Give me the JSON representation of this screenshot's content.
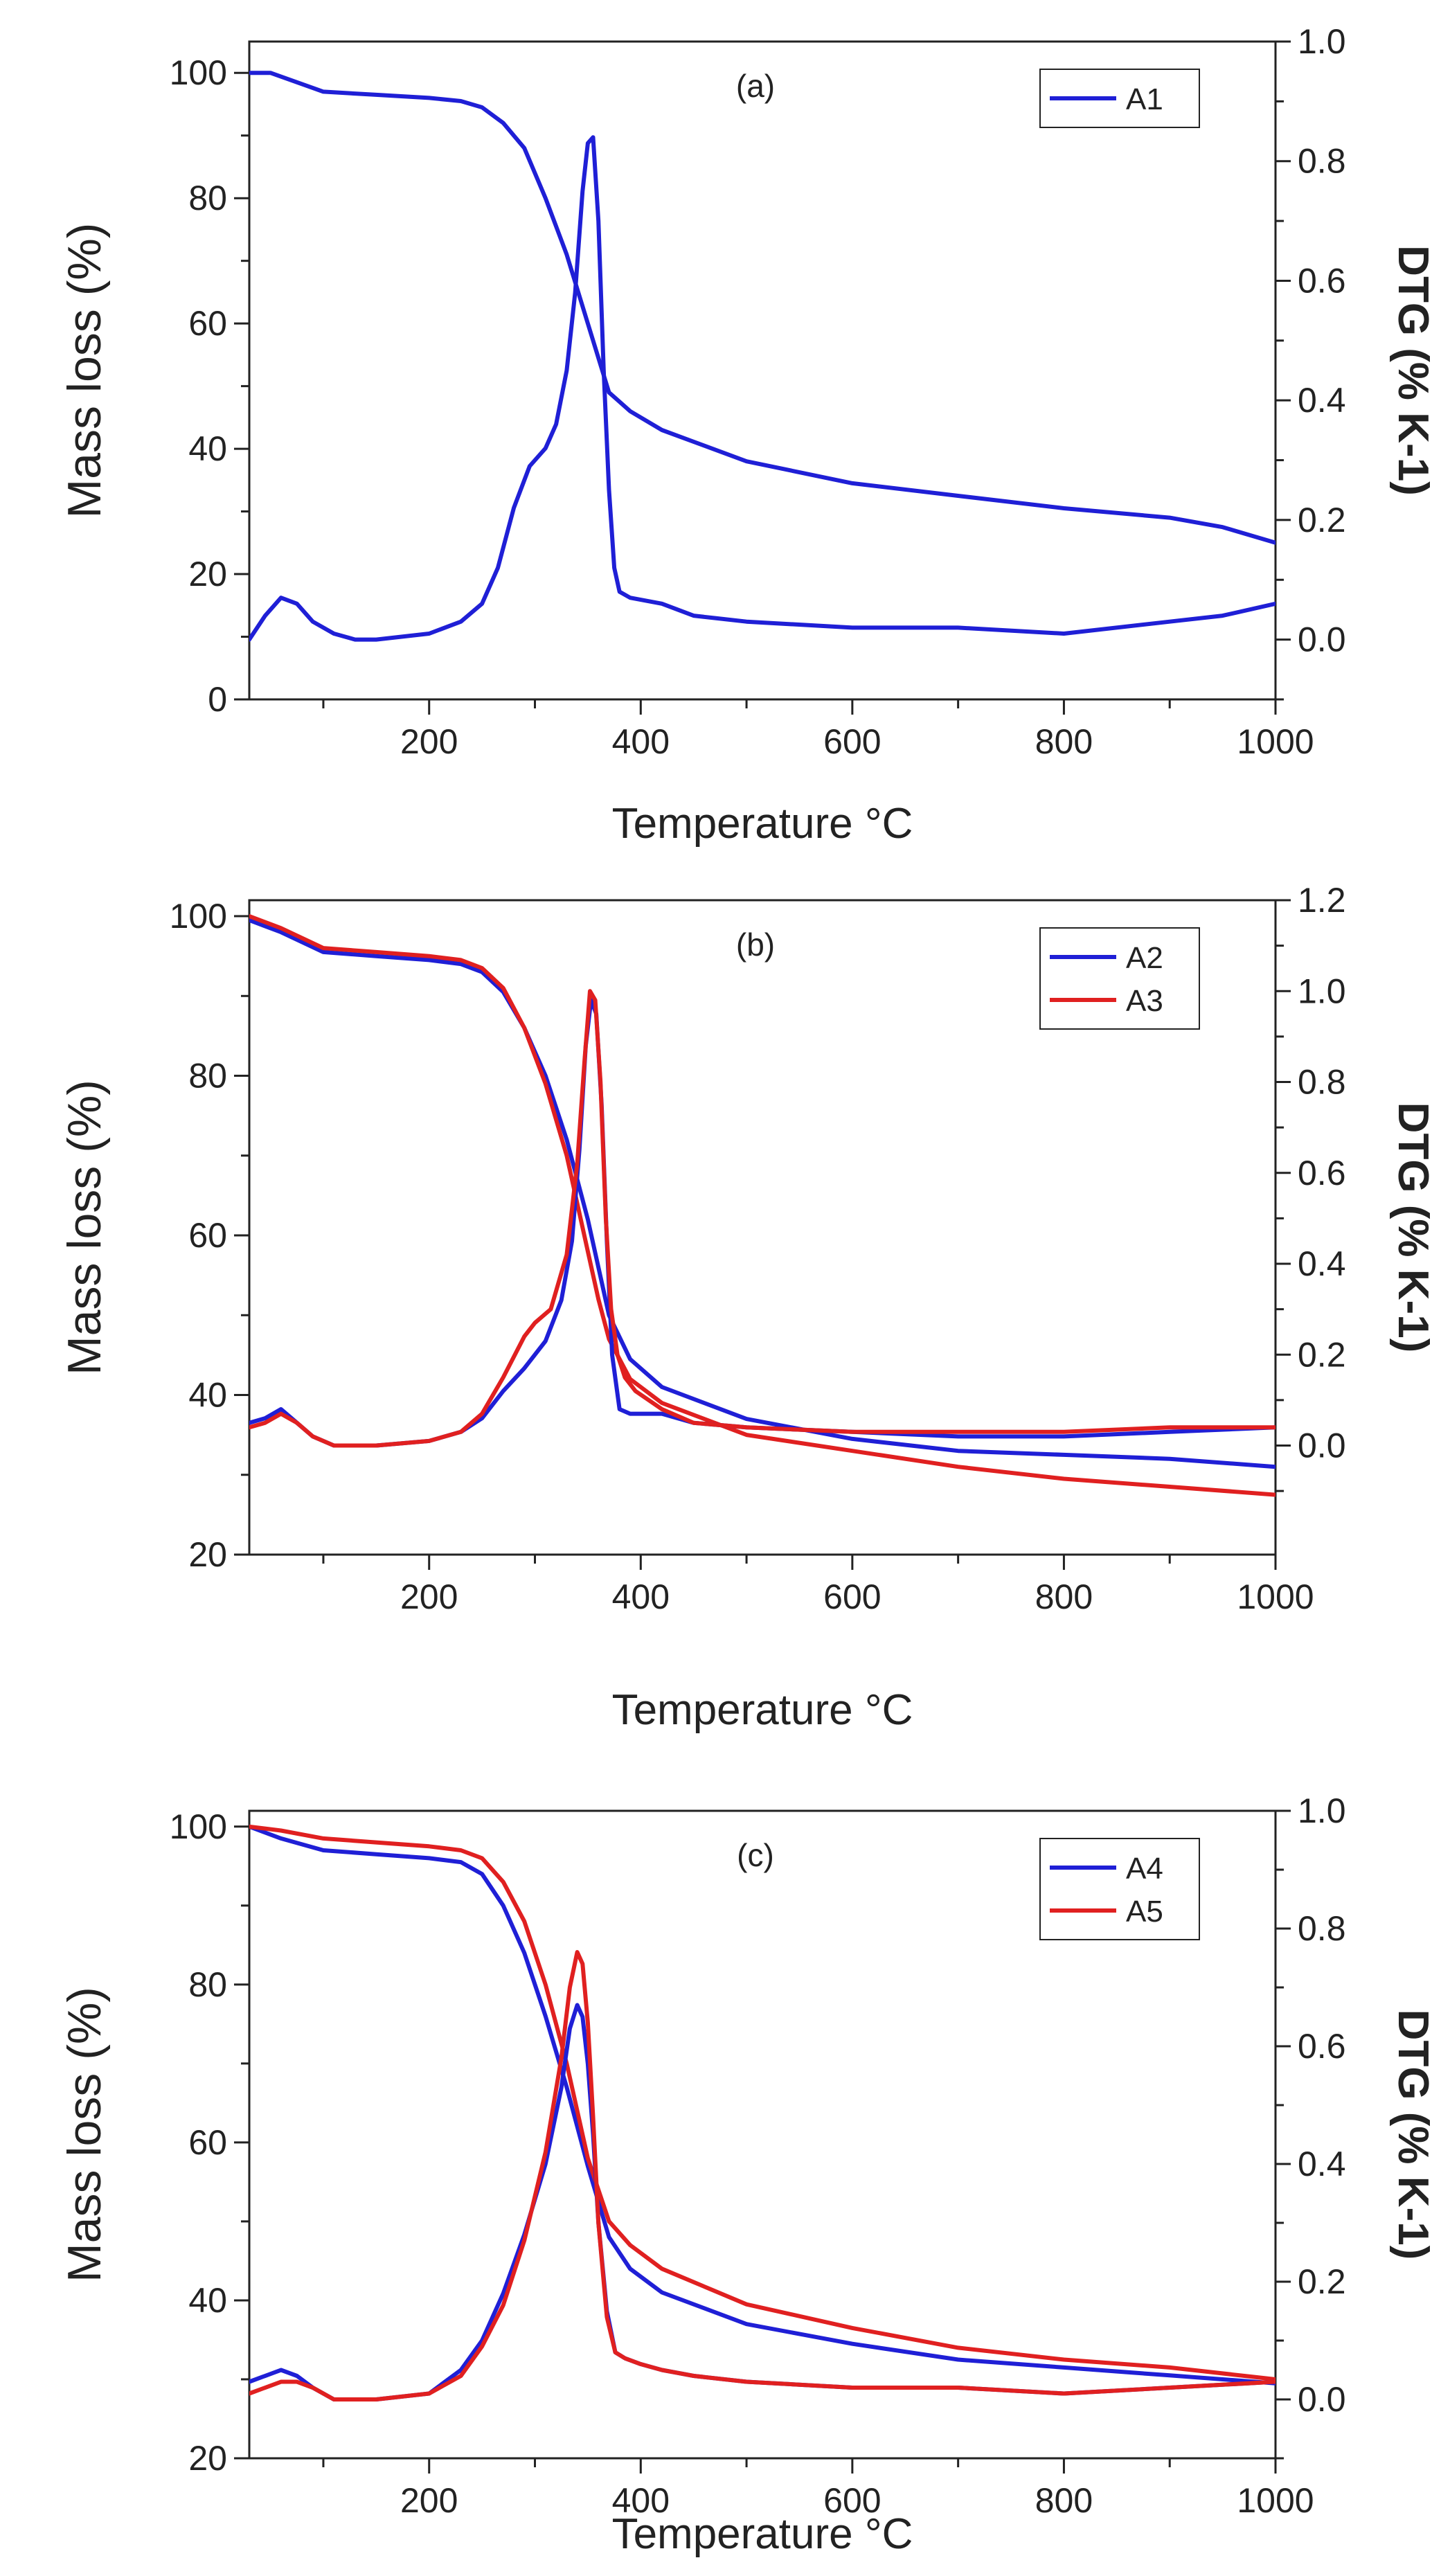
{
  "chart_data": [
    {
      "type": "line",
      "panel_label": "(a)",
      "xlabel": "Temperature °C",
      "ylabel": "Mass loss (%)",
      "y2label": "DTG (% K-1)",
      "xlim": [
        30,
        1000
      ],
      "ylim": [
        0,
        105
      ],
      "y2lim": [
        -0.1,
        1.0
      ],
      "x_ticks": [
        200,
        400,
        600,
        800,
        1000
      ],
      "y_ticks": [
        0,
        20,
        40,
        60,
        80,
        100
      ],
      "y2_ticks": [
        "0.0",
        "0.2",
        "0.4",
        "0.6",
        "0.8",
        "1.0"
      ],
      "y2_tick_values": [
        0.0,
        0.2,
        0.4,
        0.6,
        0.8,
        1.0
      ],
      "legend_position": "top-right",
      "series": [
        {
          "name": "A1",
          "color": "#1f1fd6",
          "axis": "left",
          "kind": "TG",
          "x": [
            30,
            50,
            100,
            150,
            200,
            230,
            250,
            270,
            290,
            310,
            330,
            350,
            370,
            390,
            420,
            500,
            600,
            700,
            800,
            900,
            950,
            1000
          ],
          "y": [
            100,
            100,
            97,
            96.5,
            96,
            95.5,
            94.5,
            92,
            88,
            80,
            71,
            60,
            49,
            46,
            43,
            38,
            34.5,
            32.5,
            30.5,
            29,
            27.5,
            25
          ]
        },
        {
          "name": "A1",
          "color": "#1f1fd6",
          "axis": "right",
          "kind": "DTG",
          "x": [
            30,
            45,
            60,
            75,
            90,
            110,
            130,
            150,
            200,
            230,
            250,
            265,
            280,
            295,
            310,
            320,
            330,
            338,
            345,
            350,
            355,
            360,
            365,
            370,
            375,
            380,
            390,
            420,
            450,
            500,
            600,
            700,
            800,
            900,
            950,
            1000
          ],
          "y": [
            0.0,
            0.04,
            0.07,
            0.06,
            0.03,
            0.01,
            0.0,
            0.0,
            0.01,
            0.03,
            0.06,
            0.12,
            0.22,
            0.29,
            0.32,
            0.36,
            0.45,
            0.58,
            0.75,
            0.83,
            0.84,
            0.7,
            0.45,
            0.25,
            0.12,
            0.08,
            0.07,
            0.06,
            0.04,
            0.03,
            0.02,
            0.02,
            0.01,
            0.03,
            0.04,
            0.06
          ]
        }
      ],
      "legend": [
        "A1"
      ]
    },
    {
      "type": "line",
      "panel_label": "(b)",
      "xlabel": "Temperature °C",
      "ylabel": "Mass loss (%)",
      "y2label": "DTG (% K-1)",
      "xlim": [
        30,
        1000
      ],
      "ylim": [
        20,
        102
      ],
      "y2lim": [
        -0.24,
        1.2
      ],
      "x_ticks": [
        200,
        400,
        600,
        800,
        1000
      ],
      "y_ticks": [
        20,
        40,
        60,
        80,
        100
      ],
      "y2_ticks": [
        "0.0",
        "0.2",
        "0.4",
        "0.6",
        "0.8",
        "1.0",
        "1.2"
      ],
      "y2_tick_values": [
        0.0,
        0.2,
        0.4,
        0.6,
        0.8,
        1.0,
        1.2
      ],
      "legend_position": "top-right",
      "series": [
        {
          "name": "A2",
          "color": "#1f1fd6",
          "axis": "left",
          "kind": "TG",
          "x": [
            30,
            60,
            100,
            150,
            200,
            230,
            250,
            270,
            290,
            310,
            330,
            350,
            370,
            390,
            420,
            500,
            600,
            700,
            800,
            900,
            1000
          ],
          "y": [
            99.5,
            98,
            95.5,
            95,
            94.5,
            94,
            93,
            90.5,
            86,
            80,
            72,
            62,
            50,
            44.5,
            41,
            37,
            34.5,
            33,
            32.5,
            32,
            31
          ]
        },
        {
          "name": "A3",
          "color": "#e02020",
          "axis": "left",
          "kind": "TG",
          "x": [
            30,
            60,
            100,
            150,
            200,
            230,
            250,
            270,
            290,
            310,
            330,
            350,
            360,
            370,
            390,
            420,
            500,
            600,
            700,
            800,
            900,
            1000
          ],
          "y": [
            100,
            98.5,
            96,
            95.5,
            95,
            94.5,
            93.5,
            91,
            86,
            79,
            70,
            58,
            52,
            47,
            42,
            39,
            35,
            33,
            31,
            29.5,
            28.5,
            27.5
          ]
        },
        {
          "name": "A2",
          "color": "#1f1fd6",
          "axis": "right",
          "kind": "DTG",
          "x": [
            30,
            45,
            60,
            75,
            90,
            110,
            130,
            150,
            200,
            230,
            250,
            270,
            290,
            310,
            325,
            335,
            342,
            348,
            353,
            358,
            363,
            368,
            373,
            380,
            390,
            420,
            450,
            500,
            600,
            700,
            800,
            900,
            1000
          ],
          "y": [
            0.05,
            0.06,
            0.08,
            0.05,
            0.02,
            0.0,
            0.0,
            0.0,
            0.01,
            0.03,
            0.06,
            0.12,
            0.17,
            0.23,
            0.32,
            0.45,
            0.65,
            0.88,
            0.98,
            0.95,
            0.75,
            0.45,
            0.2,
            0.08,
            0.07,
            0.07,
            0.05,
            0.04,
            0.03,
            0.02,
            0.02,
            0.03,
            0.04
          ]
        },
        {
          "name": "A3",
          "color": "#e02020",
          "axis": "right",
          "kind": "DTG",
          "x": [
            30,
            45,
            60,
            75,
            90,
            110,
            130,
            150,
            200,
            230,
            250,
            270,
            290,
            300,
            315,
            330,
            340,
            347,
            352,
            357,
            362,
            367,
            372,
            378,
            385,
            395,
            420,
            450,
            500,
            600,
            700,
            800,
            900,
            1000
          ],
          "y": [
            0.04,
            0.05,
            0.07,
            0.05,
            0.02,
            0.0,
            0.0,
            0.0,
            0.01,
            0.03,
            0.07,
            0.15,
            0.24,
            0.27,
            0.3,
            0.42,
            0.62,
            0.85,
            1.0,
            0.98,
            0.8,
            0.5,
            0.3,
            0.2,
            0.15,
            0.12,
            0.08,
            0.05,
            0.04,
            0.03,
            0.03,
            0.03,
            0.04,
            0.04
          ]
        }
      ],
      "legend": [
        "A2",
        "A3"
      ]
    },
    {
      "type": "line",
      "panel_label": "(c)",
      "xlabel": "Temperature °C",
      "ylabel": "Mass loss (%)",
      "y2label": "DTG (% K-1)",
      "xlim": [
        30,
        1000
      ],
      "ylim": [
        20,
        102
      ],
      "y2lim": [
        -0.1,
        1.0
      ],
      "x_ticks": [
        200,
        400,
        600,
        800,
        1000
      ],
      "y_ticks": [
        20,
        40,
        60,
        80,
        100
      ],
      "y2_ticks": [
        "0.0",
        "0.2",
        "0.4",
        "0.6",
        "0.8",
        "1.0"
      ],
      "y2_tick_values": [
        0.0,
        0.2,
        0.4,
        0.6,
        0.8,
        1.0
      ],
      "legend_position": "top-right",
      "series": [
        {
          "name": "A4",
          "color": "#1f1fd6",
          "axis": "left",
          "kind": "TG",
          "x": [
            30,
            60,
            100,
            150,
            200,
            230,
            250,
            270,
            290,
            310,
            330,
            350,
            370,
            390,
            420,
            500,
            600,
            700,
            800,
            900,
            1000
          ],
          "y": [
            100,
            98.5,
            97,
            96.5,
            96,
            95.5,
            94,
            90,
            84,
            76,
            67,
            57,
            48,
            44,
            41,
            37,
            34.5,
            32.5,
            31.5,
            30.5,
            29.5
          ]
        },
        {
          "name": "A5",
          "color": "#e02020",
          "axis": "left",
          "kind": "TG",
          "x": [
            30,
            60,
            100,
            150,
            200,
            230,
            250,
            270,
            290,
            310,
            330,
            350,
            370,
            390,
            420,
            500,
            600,
            700,
            800,
            900,
            1000
          ],
          "y": [
            100,
            99.5,
            98.5,
            98,
            97.5,
            97,
            96,
            93,
            88,
            80,
            70,
            58,
            50,
            47,
            44,
            39.5,
            36.5,
            34,
            32.5,
            31.5,
            30
          ]
        },
        {
          "name": "A4",
          "color": "#1f1fd6",
          "axis": "right",
          "kind": "DTG",
          "x": [
            30,
            45,
            60,
            75,
            90,
            110,
            130,
            150,
            200,
            230,
            250,
            270,
            290,
            310,
            325,
            333,
            340,
            345,
            350,
            355,
            360,
            368,
            376,
            385,
            400,
            420,
            450,
            500,
            600,
            700,
            800,
            900,
            1000
          ],
          "y": [
            0.03,
            0.04,
            0.05,
            0.04,
            0.02,
            0.0,
            0.0,
            0.0,
            0.01,
            0.05,
            0.1,
            0.18,
            0.28,
            0.4,
            0.53,
            0.63,
            0.67,
            0.65,
            0.57,
            0.45,
            0.3,
            0.15,
            0.08,
            0.07,
            0.06,
            0.05,
            0.04,
            0.03,
            0.02,
            0.02,
            0.01,
            0.02,
            0.03
          ]
        },
        {
          "name": "A5",
          "color": "#e02020",
          "axis": "right",
          "kind": "DTG",
          "x": [
            30,
            45,
            60,
            75,
            90,
            110,
            130,
            150,
            200,
            230,
            250,
            270,
            290,
            310,
            325,
            333,
            340,
            345,
            350,
            355,
            360,
            368,
            376,
            385,
            400,
            420,
            450,
            500,
            600,
            700,
            800,
            900,
            1000
          ],
          "y": [
            0.01,
            0.02,
            0.03,
            0.03,
            0.02,
            0.0,
            0.0,
            0.0,
            0.01,
            0.04,
            0.09,
            0.16,
            0.27,
            0.42,
            0.58,
            0.7,
            0.76,
            0.74,
            0.64,
            0.48,
            0.3,
            0.14,
            0.08,
            0.07,
            0.06,
            0.05,
            0.04,
            0.03,
            0.02,
            0.02,
            0.01,
            0.02,
            0.03
          ]
        }
      ],
      "legend": [
        "A4",
        "A5"
      ]
    }
  ]
}
